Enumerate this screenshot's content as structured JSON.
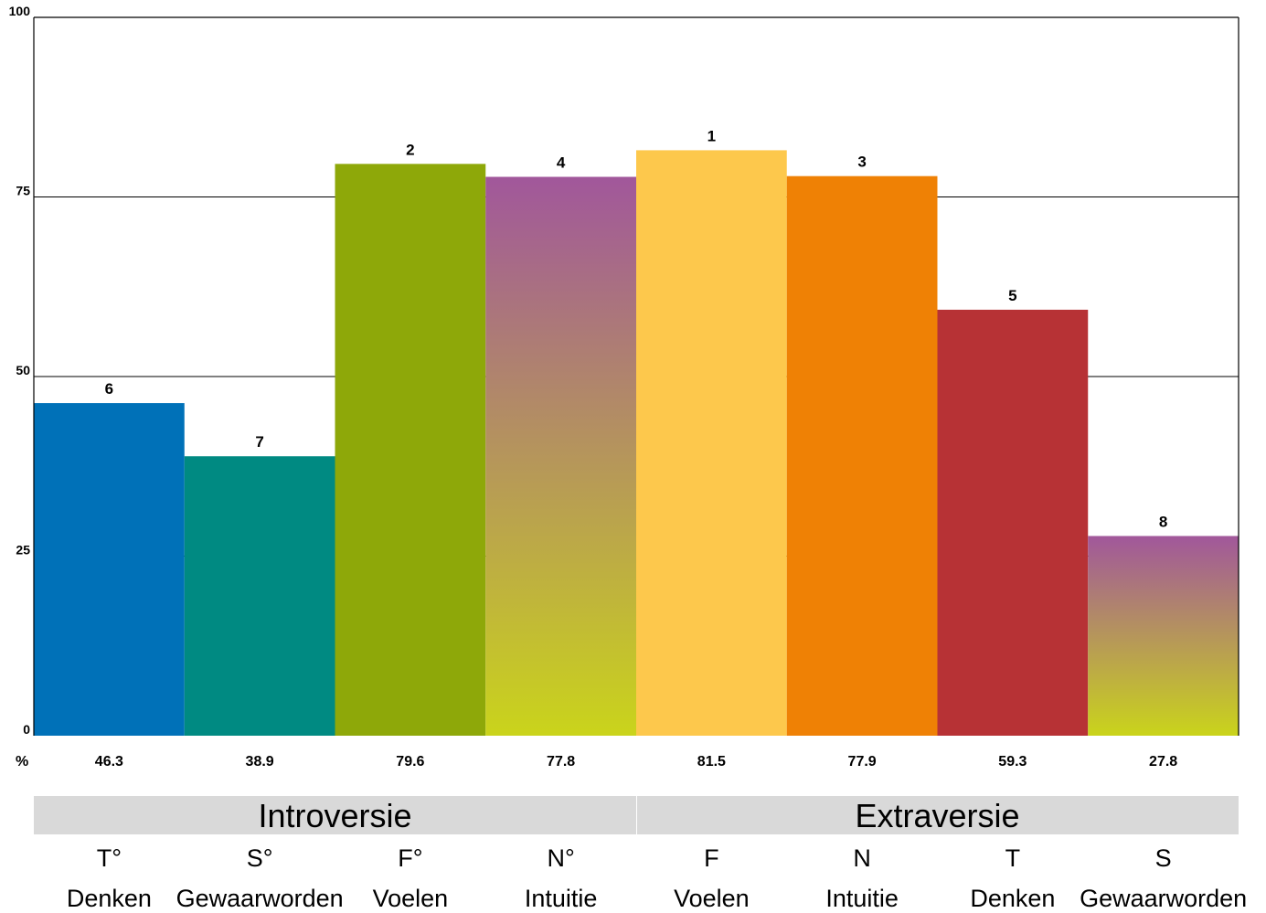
{
  "chart_data": {
    "type": "bar",
    "ylim": [
      0,
      100
    ],
    "yticks": [
      "0",
      "25",
      "50",
      "75",
      "100"
    ],
    "grid": true,
    "percent_label": "%",
    "categories": [
      {
        "code": "T°",
        "name": "Denken",
        "value": 46.3,
        "value_label": "46.3",
        "rank": "6",
        "fill": "#0071b8",
        "gradient": false
      },
      {
        "code": "S°",
        "name": "Gewaarworden",
        "value": 38.9,
        "value_label": "38.9",
        "rank": "7",
        "fill": "#008a82",
        "gradient": false
      },
      {
        "code": "F°",
        "name": "Voelen",
        "value": 79.6,
        "value_label": "79.6",
        "rank": "2",
        "fill": "#8ea809",
        "gradient": false
      },
      {
        "code": "N°",
        "name": "Intuitie",
        "value": 77.8,
        "value_label": "77.8",
        "rank": "4",
        "fill": "#a1579b",
        "fill_bottom": "#cad41b",
        "gradient": true
      },
      {
        "code": "F",
        "name": "Voelen",
        "value": 81.5,
        "value_label": "81.5",
        "rank": "1",
        "fill": "#fdc84c",
        "gradient": false
      },
      {
        "code": "N",
        "name": "Intuitie",
        "value": 77.9,
        "value_label": "77.9",
        "rank": "3",
        "fill": "#ef8105",
        "gradient": false
      },
      {
        "code": "T",
        "name": "Denken",
        "value": 59.3,
        "value_label": "59.3",
        "rank": "5",
        "fill": "#b73235",
        "gradient": false
      },
      {
        "code": "S",
        "name": "Gewaarworden",
        "value": 27.8,
        "value_label": "27.8",
        "rank": "8",
        "fill": "#a1579b",
        "fill_bottom": "#cad41b",
        "gradient": true
      }
    ],
    "groups": [
      {
        "label": "Introversie",
        "span": [
          0,
          3
        ]
      },
      {
        "label": "Extraversie",
        "span": [
          4,
          7
        ]
      }
    ],
    "colors": {
      "grid": "#000000",
      "group_band": "#d9d9d9",
      "axis": "#000000"
    }
  }
}
